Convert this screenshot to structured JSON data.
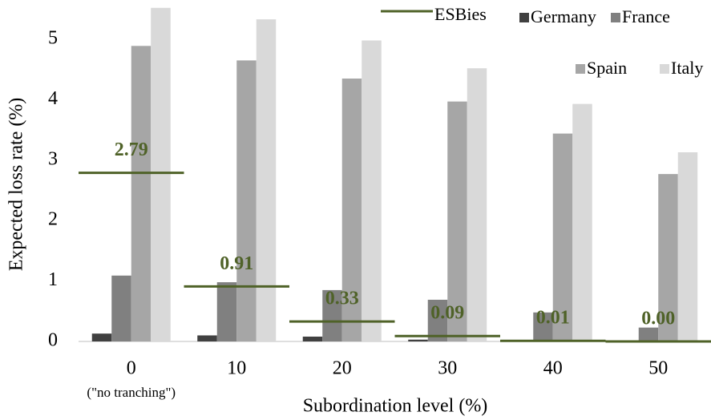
{
  "chart_data": {
    "type": "bar",
    "categories": [
      "0",
      "10",
      "20",
      "30",
      "40",
      "50"
    ],
    "annotations": [
      "(\"no tranching\")"
    ],
    "x_label": "Subordination level (%)",
    "y_label": "Expected loss rate (%)",
    "ylim": [
      0,
      5.6
    ],
    "yticks": [
      0,
      1,
      2,
      3,
      4,
      5
    ],
    "grid": false,
    "legend": "top-right",
    "series": [
      {
        "name": "ESBies",
        "color": "#4f6228",
        "mark": "hline",
        "values": [
          2.79,
          0.91,
          0.33,
          0.09,
          0.01,
          0
        ],
        "value_labels": [
          "2.79",
          "0.91",
          "0.33",
          "0.09",
          "0.01",
          "0.00"
        ]
      },
      {
        "name": "Germany",
        "color": "#404040",
        "values": [
          0.13,
          0.1,
          0.08,
          0.03,
          0,
          0
        ]
      },
      {
        "name": "France",
        "color": "#808080",
        "values": [
          1.09,
          0.98,
          0.85,
          0.69,
          0.48,
          0.23
        ]
      },
      {
        "name": "Spain",
        "color": "#a6a6a6",
        "values": [
          4.89,
          4.65,
          4.35,
          3.97,
          3.44,
          2.77
        ]
      },
      {
        "name": "Italy",
        "color": "#d9d9d9",
        "values": [
          5.52,
          5.33,
          4.98,
          4.52,
          3.93,
          3.13
        ]
      }
    ]
  }
}
